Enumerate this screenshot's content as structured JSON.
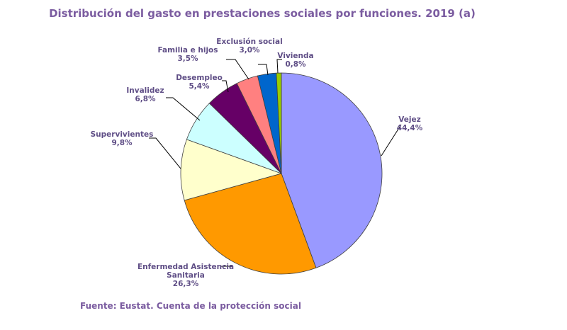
{
  "chart_data": {
    "type": "pie",
    "title": "Distribución del gasto en prestaciones sociales por funciones. 2019 (a)",
    "source": "Fuente: Eustat. Cuenta de la protección social",
    "series": [
      {
        "name": "Vejez",
        "value": 44.4,
        "value_label": "44,4%",
        "color": "#9999FF"
      },
      {
        "name": "Enfermedad Asistencia Sanitaria",
        "name_lines": [
          "Enfermedad Asistencia",
          "Sanitaria"
        ],
        "value": 26.3,
        "value_label": "26,3%",
        "color": "#FF9900"
      },
      {
        "name": "Supervivientes",
        "value": 9.8,
        "value_label": "9,8%",
        "color": "#FFFFCC"
      },
      {
        "name": "Invalidez",
        "value": 6.8,
        "value_label": "6,8%",
        "color": "#CCFFFF"
      },
      {
        "name": "Desempleo",
        "value": 5.4,
        "value_label": "5,4%",
        "color": "#660066"
      },
      {
        "name": "Familia e hijos",
        "value": 3.5,
        "value_label": "3,5%",
        "color": "#FF8080"
      },
      {
        "name": "Exclusión social",
        "value": 3.0,
        "value_label": "3,0%",
        "color": "#0066CC"
      },
      {
        "name": "Vivienda",
        "value": 0.8,
        "value_label": "0,8%",
        "color": "#99CC00"
      }
    ]
  }
}
